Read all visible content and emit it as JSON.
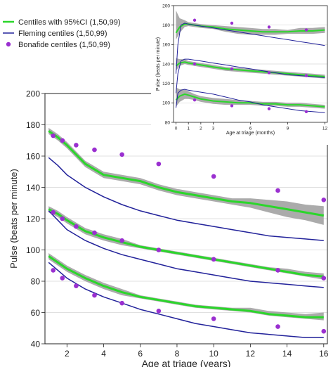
{
  "colors": {
    "green": "#2bd62b",
    "blue": "#22229a",
    "purple": "#9a2fd0",
    "ci": "#9c9c9c"
  },
  "chart_data": [
    {
      "type": "line",
      "title": "",
      "xlabel": "Age at triage (years)",
      "ylabel": "Pulse (beats per minute)",
      "xlim": [
        0.8,
        16.2
      ],
      "ylim": [
        40,
        200
      ],
      "xticks": [
        "2",
        "4",
        "6",
        "8",
        "10",
        "12",
        "14",
        "16"
      ],
      "yticks": [
        "40",
        "60",
        "80",
        "100",
        "120",
        "140",
        "160",
        "180",
        "200"
      ],
      "grid": true,
      "legend": "top-left",
      "legend_entries": [
        {
          "label": "Centiles with 95%CI (1,50,99)",
          "kind": "line",
          "color": "#2bd62b"
        },
        {
          "label": "Fleming centiles (1,50,99)",
          "kind": "line",
          "color": "#22229a"
        },
        {
          "label": "Bonafide centiles (1,50,99)",
          "kind": "point",
          "color": "#9a2fd0"
        }
      ],
      "series": [
        {
          "group": "centiles",
          "x": [
            1,
            1.5,
            2,
            3,
            4,
            5,
            6,
            7,
            8,
            9,
            10,
            11,
            12,
            13,
            14,
            15,
            16
          ],
          "values": [
            176,
            172,
            167,
            155,
            148,
            146,
            144,
            140,
            137,
            135,
            133,
            131,
            130,
            128,
            126,
            124,
            122
          ],
          "ci": [
            [
              174,
              178
            ],
            [
              170,
              174
            ],
            [
              165,
              169
            ],
            [
              153,
              157
            ],
            [
              146,
              150
            ],
            [
              144,
              148
            ],
            [
              142,
              146
            ],
            [
              138,
              142
            ],
            [
              135,
              139
            ],
            [
              133,
              137
            ],
            [
              131,
              135
            ],
            [
              129,
              133
            ],
            [
              127,
              133
            ],
            [
              124,
              132
            ],
            [
              121,
              131
            ],
            [
              119,
              129
            ],
            [
              116,
              128
            ]
          ]
        },
        {
          "group": "centiles",
          "x": [
            1,
            1.5,
            2,
            3,
            4,
            5,
            6,
            7,
            8,
            9,
            10,
            11,
            12,
            13,
            14,
            15,
            16
          ],
          "values": [
            126,
            123,
            119,
            112,
            108,
            105,
            102,
            100,
            98,
            96,
            94,
            92,
            90,
            88,
            86,
            84,
            83
          ],
          "ci": [
            [
              124,
              128
            ],
            [
              121,
              125
            ],
            [
              117,
              121
            ],
            [
              110,
              114
            ],
            [
              106,
              110
            ],
            [
              103,
              107
            ],
            [
              101,
              103
            ],
            [
              99,
              101
            ],
            [
              97,
              99
            ],
            [
              95,
              97
            ],
            [
              93,
              95
            ],
            [
              91,
              93
            ],
            [
              89,
              91
            ],
            [
              87,
              89
            ],
            [
              85,
              88
            ],
            [
              83,
              86
            ],
            [
              81,
              85
            ]
          ]
        },
        {
          "group": "centiles",
          "x": [
            1,
            1.5,
            2,
            3,
            4,
            5,
            6,
            7,
            8,
            9,
            10,
            11,
            12,
            13,
            14,
            15,
            16
          ],
          "values": [
            96,
            92,
            88,
            82,
            77,
            73,
            70,
            68,
            66,
            64,
            63,
            62,
            61,
            59,
            58,
            57,
            57
          ],
          "ci": [
            [
              94,
              98
            ],
            [
              90,
              94
            ],
            [
              86,
              90
            ],
            [
              80,
              84
            ],
            [
              75,
              79
            ],
            [
              71,
              75
            ],
            [
              69,
              71
            ],
            [
              67,
              69
            ],
            [
              65,
              67
            ],
            [
              63,
              65
            ],
            [
              62,
              64
            ],
            [
              61,
              63
            ],
            [
              60,
              63
            ],
            [
              58,
              61
            ],
            [
              57,
              60
            ],
            [
              56,
              59
            ],
            [
              55,
              60
            ]
          ]
        },
        {
          "group": "fleming",
          "x": [
            1,
            1.5,
            2,
            3,
            4,
            5,
            6,
            7,
            8,
            9,
            10,
            11,
            12,
            13,
            14,
            15,
            16
          ],
          "values": [
            159,
            154,
            148,
            140,
            134,
            129,
            125,
            122,
            119,
            117,
            115,
            113,
            111,
            109,
            108,
            107,
            106
          ]
        },
        {
          "group": "fleming",
          "x": [
            1,
            1.5,
            2,
            3,
            4,
            5,
            6,
            7,
            8,
            9,
            10,
            11,
            12,
            13,
            14,
            15,
            16
          ],
          "values": [
            125,
            119,
            113,
            106,
            101,
            97,
            94,
            91,
            88,
            86,
            84,
            82,
            80,
            79,
            78,
            77,
            76
          ]
        },
        {
          "group": "fleming",
          "x": [
            1,
            1.5,
            2,
            3,
            4,
            5,
            6,
            7,
            8,
            9,
            10,
            11,
            12,
            13,
            14,
            15,
            16
          ],
          "values": [
            92,
            87,
            82,
            75,
            70,
            66,
            62,
            59,
            56,
            53,
            51,
            49,
            47,
            46,
            45,
            44,
            44
          ]
        },
        {
          "group": "bonafide",
          "x": [
            1.25,
            1.75,
            2.5,
            3.5,
            5,
            7,
            10,
            13.5,
            16
          ],
          "values": [
            173,
            170,
            167,
            164,
            161,
            155,
            147,
            138,
            132
          ]
        },
        {
          "group": "bonafide",
          "x": [
            1.25,
            1.75,
            2.5,
            3.5,
            5,
            7,
            10,
            13.5,
            16
          ],
          "values": [
            124,
            120,
            115,
            111,
            106,
            100,
            94,
            87,
            82
          ]
        },
        {
          "group": "bonafide",
          "x": [
            1.25,
            1.75,
            2.5,
            3.5,
            5,
            7,
            10,
            13.5,
            16
          ],
          "values": [
            87,
            82,
            77,
            71,
            66,
            61,
            56,
            51,
            48
          ]
        }
      ]
    },
    {
      "type": "line",
      "title": "",
      "xlabel": "Age at triage (months)",
      "ylabel": "Pulse (beats per minute)",
      "xlim": [
        -0.2,
        12.2
      ],
      "ylim": [
        80,
        200
      ],
      "xticks": [
        "0",
        "1",
        "2",
        "3",
        "6",
        "9",
        "12"
      ],
      "xtick_values": [
        0,
        1,
        2,
        3,
        6,
        9,
        12
      ],
      "yticks": [
        "80",
        "100",
        "120",
        "140",
        "160",
        "180",
        "200"
      ],
      "grid": true,
      "series": [
        {
          "group": "centiles",
          "x": [
            0,
            0.3,
            0.7,
            1,
            1.5,
            2,
            3,
            4,
            5,
            6,
            7,
            8,
            9,
            10,
            11,
            12
          ],
          "values": [
            172,
            178,
            181,
            181,
            180,
            179,
            178,
            176,
            175,
            174,
            173,
            173,
            173,
            174,
            174,
            175
          ],
          "ci": [
            [
              165,
              195
            ],
            [
              172,
              187
            ],
            [
              178,
              185
            ],
            [
              179,
              183
            ],
            [
              178,
              182
            ],
            [
              177,
              181
            ],
            [
              176,
              180
            ],
            [
              173,
              179
            ],
            [
              171,
              178
            ],
            [
              170,
              177
            ],
            [
              170,
              176
            ],
            [
              170,
              176
            ],
            [
              171,
              175
            ],
            [
              171,
              177
            ],
            [
              171,
              177
            ],
            [
              172,
              178
            ]
          ]
        },
        {
          "group": "centiles",
          "x": [
            0,
            0.3,
            0.7,
            1,
            1.5,
            2,
            3,
            4,
            5,
            6,
            7,
            8,
            9,
            10,
            11,
            12
          ],
          "values": [
            138,
            141,
            142,
            141,
            140,
            139,
            137,
            135,
            134,
            133,
            132,
            131,
            130,
            129,
            128,
            127
          ],
          "ci": [
            [
              133,
              146
            ],
            [
              138,
              145
            ],
            [
              140,
              145
            ],
            [
              139,
              143
            ],
            [
              138,
              142
            ],
            [
              137,
              141
            ],
            [
              135,
              139
            ],
            [
              133,
              137
            ],
            [
              132,
              136
            ],
            [
              131,
              135
            ],
            [
              130,
              134
            ],
            [
              129,
              133
            ],
            [
              128,
              132
            ],
            [
              127,
              131
            ],
            [
              126,
              130
            ],
            [
              125,
              129
            ]
          ]
        },
        {
          "group": "centiles",
          "x": [
            0,
            0.3,
            0.7,
            1,
            1.5,
            2,
            3,
            4,
            5,
            6,
            7,
            8,
            9,
            10,
            11,
            12
          ],
          "values": [
            103,
            107,
            109,
            108,
            106,
            104,
            102,
            101,
            100,
            100,
            99,
            99,
            98,
            98,
            97,
            96
          ],
          "ci": [
            [
              96,
              116
            ],
            [
              101,
              114
            ],
            [
              104,
              114
            ],
            [
              104,
              112
            ],
            [
              103,
              109
            ],
            [
              101,
              107
            ],
            [
              99,
              105
            ],
            [
              98,
              104
            ],
            [
              98,
              103
            ],
            [
              98,
              102
            ],
            [
              97,
              101
            ],
            [
              97,
              101
            ],
            [
              96,
              100
            ],
            [
              96,
              100
            ],
            [
              95,
              99
            ],
            [
              94,
              98
            ]
          ]
        },
        {
          "group": "fleming",
          "x": [
            0,
            0.15,
            0.4,
            0.7,
            1,
            1.5,
            2,
            3,
            4,
            5,
            6,
            7,
            8,
            9,
            10,
            11,
            12
          ],
          "values": [
            130,
            160,
            180,
            182,
            181,
            180,
            179,
            177,
            175,
            173,
            171,
            169,
            167,
            165,
            163,
            161,
            159
          ]
        },
        {
          "group": "fleming",
          "x": [
            0,
            0.15,
            0.4,
            0.7,
            1,
            1.5,
            2,
            3,
            4,
            5,
            6,
            7,
            8,
            9,
            10,
            11,
            12
          ],
          "values": [
            110,
            130,
            143,
            145,
            145,
            144,
            143,
            141,
            139,
            137,
            135,
            133,
            131,
            129,
            128,
            127,
            126
          ]
        },
        {
          "group": "fleming",
          "x": [
            0,
            0.15,
            0.4,
            0.7,
            1,
            1.5,
            2,
            3,
            4,
            5,
            6,
            7,
            8,
            9,
            10,
            11,
            12
          ],
          "values": [
            95,
            110,
            113,
            114,
            113,
            112,
            111,
            109,
            106,
            103,
            101,
            98,
            96,
            94,
            92,
            91,
            90
          ]
        },
        {
          "group": "bonafide",
          "x": [
            1.5,
            4.5,
            7.5,
            10.5
          ],
          "values": [
            185,
            182,
            178,
            175
          ]
        },
        {
          "group": "bonafide",
          "x": [
            1.5,
            4.5,
            7.5,
            10.5
          ],
          "values": [
            140,
            135,
            131,
            128
          ]
        },
        {
          "group": "bonafide",
          "x": [
            1.5,
            4.5,
            7.5,
            10.5
          ],
          "values": [
            103,
            97,
            94,
            91
          ]
        }
      ]
    }
  ]
}
